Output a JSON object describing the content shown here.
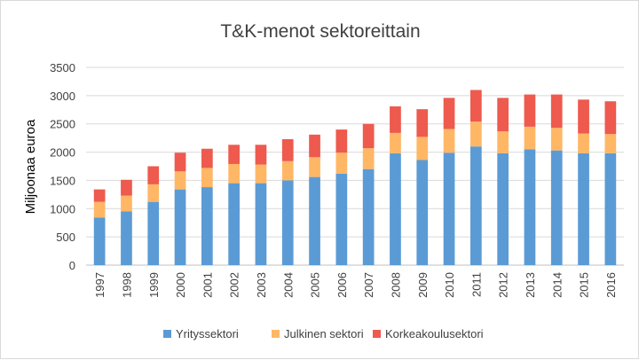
{
  "chart_data": {
    "type": "bar",
    "stacked": true,
    "title": "T&K-menot sektoreittain",
    "ylabel": "Miljoonaa euroa",
    "xlabel": "",
    "ylim": [
      0,
      3500
    ],
    "yticks": [
      0,
      500,
      1000,
      1500,
      2000,
      2500,
      3000,
      3500
    ],
    "grid": true,
    "legend_position": "bottom",
    "categories": [
      "1997",
      "1998",
      "1999",
      "2000",
      "2001",
      "2002",
      "2003",
      "2004",
      "2005",
      "2006",
      "2007",
      "2008",
      "2009",
      "2010",
      "2011",
      "2012",
      "2013",
      "2014",
      "2015",
      "2016"
    ],
    "series": [
      {
        "name": "Yrityssektori",
        "color": "#5b9bd5",
        "values": [
          840,
          950,
          1120,
          1340,
          1380,
          1450,
          1450,
          1500,
          1560,
          1620,
          1700,
          1980,
          1860,
          1990,
          2100,
          1980,
          2050,
          2030,
          1980,
          1980
        ]
      },
      {
        "name": "Julkinen sektori",
        "color": "#ffb766",
        "values": [
          280,
          280,
          310,
          320,
          340,
          340,
          330,
          340,
          350,
          370,
          370,
          360,
          410,
          420,
          440,
          390,
          400,
          400,
          350,
          340
        ]
      },
      {
        "name": "Korkeakoulusektori",
        "color": "#ee5a4e",
        "values": [
          220,
          280,
          320,
          330,
          340,
          340,
          350,
          390,
          400,
          410,
          430,
          470,
          490,
          550,
          560,
          590,
          570,
          590,
          600,
          580
        ]
      }
    ]
  }
}
